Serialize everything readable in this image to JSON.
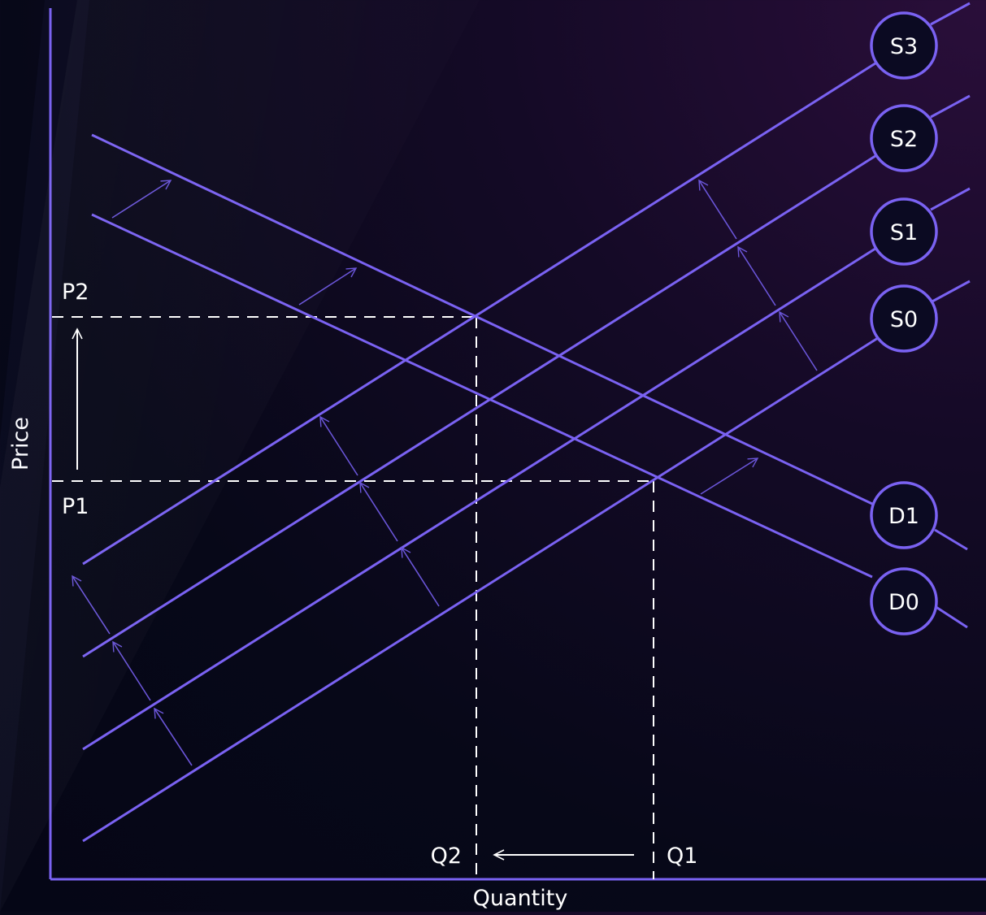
{
  "axes": {
    "y_label": "Price",
    "x_label": "Quantity"
  },
  "price_levels": [
    "P1",
    "P2"
  ],
  "quantity_levels": [
    "Q1",
    "Q2"
  ],
  "curves": {
    "supply": [
      "S0",
      "S1",
      "S2",
      "S3"
    ],
    "demand": [
      "D0",
      "D1"
    ]
  },
  "colors": {
    "curve": "#7a62f2",
    "arrow": "#6a55d8",
    "badge_fill": "#0b0a22",
    "guide": "#ffffff",
    "text": "#ffffff",
    "background": "#070818"
  }
}
